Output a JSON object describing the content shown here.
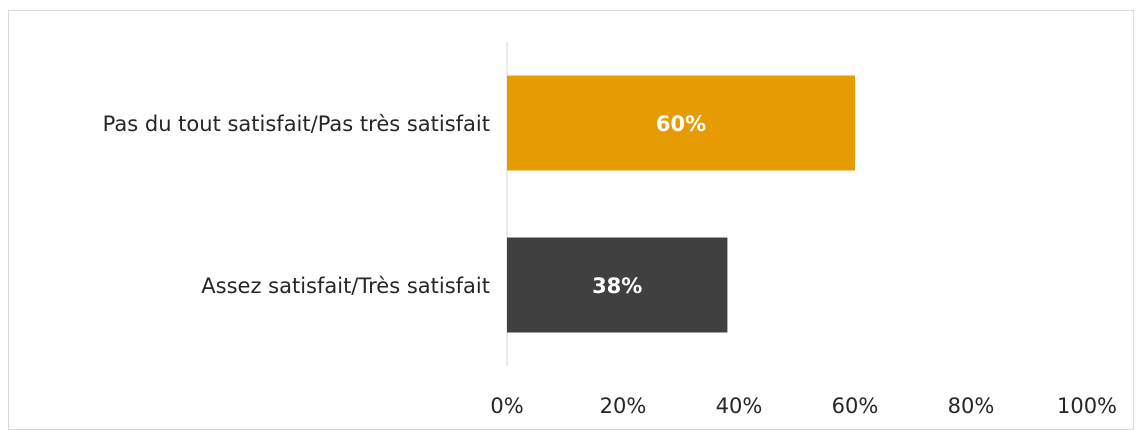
{
  "chart_data": {
    "type": "bar",
    "orientation": "horizontal",
    "categories": [
      "Pas du tout satisfait/Pas très satisfait",
      "Assez satisfait/Très satisfait"
    ],
    "values": [
      60,
      38
    ],
    "value_labels": [
      "60%",
      "38%"
    ],
    "colors": [
      "#E69C00",
      "#404040"
    ],
    "xlim": [
      0,
      100
    ],
    "x_ticks": [
      "0%",
      "20%",
      "40%",
      "60%",
      "80%",
      "100%"
    ],
    "grid": false,
    "legend": "none"
  }
}
